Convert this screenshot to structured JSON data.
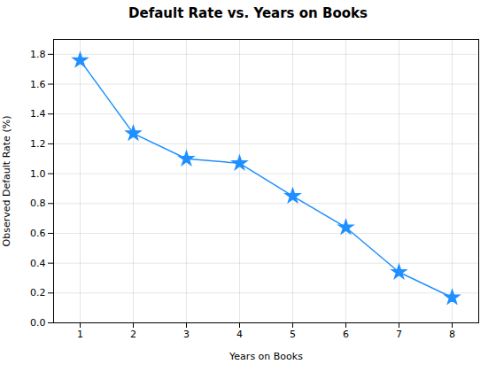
{
  "chart_data": {
    "type": "line",
    "title": "Default Rate vs. Years on Books",
    "xlabel": "Years on Books",
    "ylabel": "Observed Default Rate (%)",
    "x": [
      1,
      2,
      3,
      4,
      5,
      6,
      7,
      8
    ],
    "values": [
      1.76,
      1.27,
      1.1,
      1.07,
      0.85,
      0.64,
      0.34,
      0.17
    ],
    "color": "#1E90FF",
    "marker": "star",
    "xlim": [
      0.5,
      8.5
    ],
    "ylim": [
      0,
      1.9
    ],
    "xticks": [
      1,
      2,
      3,
      4,
      5,
      6,
      7,
      8
    ],
    "yticks": [
      {
        "value": 0,
        "label": "0.0"
      },
      0.2,
      0.4,
      0.6,
      0.8,
      {
        "value": 1,
        "label": "1.0"
      },
      1.2,
      1.4,
      1.6,
      1.8
    ],
    "grid": true
  }
}
